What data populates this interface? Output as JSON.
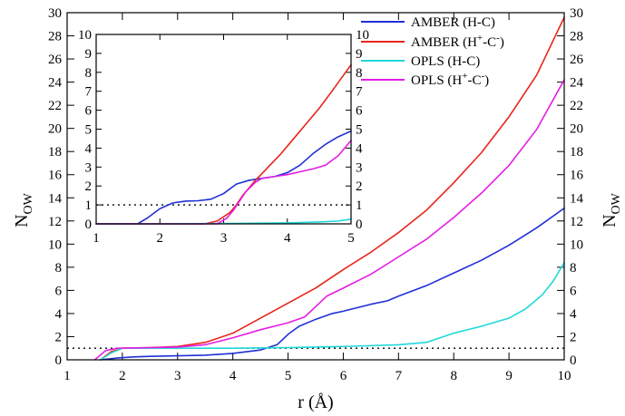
{
  "chart_data": [
    {
      "type": "line",
      "panel": "main",
      "xlabel": "r (Å)",
      "ylabel_main": "N",
      "ylabel_sub": "OW",
      "xlim": [
        1,
        10
      ],
      "ylim": [
        0,
        30
      ],
      "xticks": [
        1,
        2,
        3,
        4,
        5,
        6,
        7,
        8,
        9,
        10
      ],
      "yticks": [
        0,
        2,
        4,
        6,
        8,
        10,
        12,
        14,
        16,
        18,
        20,
        22,
        24,
        26,
        28,
        30
      ],
      "reference_line": {
        "y": 1,
        "style": "dotted"
      },
      "series": [
        {
          "name": "AMBER (H-C)",
          "color": "#1f2fd6",
          "x": [
            1.6,
            1.9,
            2.2,
            2.5,
            3.0,
            3.5,
            4.0,
            4.5,
            4.8,
            5.0,
            5.2,
            5.5,
            5.8,
            6.0,
            6.5,
            6.8,
            7.0,
            7.5,
            8.0,
            8.5,
            9.0,
            9.5,
            10.0
          ],
          "y": [
            0.0,
            0.15,
            0.25,
            0.3,
            0.35,
            0.4,
            0.55,
            0.85,
            1.3,
            2.2,
            2.9,
            3.5,
            4.0,
            4.2,
            4.8,
            5.1,
            5.5,
            6.4,
            7.5,
            8.6,
            9.9,
            11.4,
            13.1
          ]
        },
        {
          "name": "AMBER (H+-C-)",
          "label_main": "AMBER (H",
          "label_sup1": "+",
          "label_mid": "-C",
          "label_sup2": "-",
          "label_end": ")",
          "color": "#e8251b",
          "x": [
            1.6,
            1.8,
            2.0,
            2.5,
            3.0,
            3.5,
            4.0,
            4.5,
            5.0,
            5.5,
            6.0,
            6.5,
            7.0,
            7.5,
            8.0,
            8.5,
            9.0,
            9.5,
            10.0
          ],
          "y": [
            0.0,
            0.7,
            1.0,
            1.05,
            1.15,
            1.5,
            2.3,
            3.6,
            4.9,
            6.2,
            7.8,
            9.3,
            11.0,
            12.9,
            15.3,
            17.9,
            21.0,
            24.6,
            29.6
          ]
        },
        {
          "name": "OPLS (H-C)",
          "color": "#20d8d8",
          "x": [
            1.6,
            1.8,
            2.0,
            2.5,
            3.0,
            4.0,
            5.0,
            6.0,
            7.0,
            7.5,
            8.0,
            8.5,
            9.0,
            9.3,
            9.6,
            9.8,
            10.0
          ],
          "y": [
            0.0,
            0.6,
            1.0,
            1.0,
            1.0,
            1.0,
            1.05,
            1.15,
            1.3,
            1.5,
            2.3,
            2.9,
            3.6,
            4.4,
            5.6,
            6.8,
            8.4
          ]
        },
        {
          "name": "OPLS (H+-C-)",
          "label_main": "OPLS (H",
          "label_sup1": "+",
          "label_mid": "-C",
          "label_sup2": "-",
          "label_end": ")",
          "color": "#e41ee4",
          "x": [
            1.5,
            1.7,
            1.9,
            2.5,
            3.0,
            3.5,
            4.0,
            4.5,
            5.0,
            5.3,
            5.5,
            5.7,
            6.0,
            6.5,
            7.0,
            7.5,
            8.0,
            8.5,
            9.0,
            9.5,
            10.0
          ],
          "y": [
            0.0,
            0.8,
            1.0,
            1.05,
            1.1,
            1.3,
            1.9,
            2.6,
            3.2,
            3.7,
            4.6,
            5.5,
            6.2,
            7.4,
            8.9,
            10.4,
            12.3,
            14.4,
            16.8,
            19.9,
            24.2
          ]
        }
      ],
      "legend": {
        "placement": "top-right-inside"
      }
    },
    {
      "type": "line",
      "panel": "inset",
      "xlim": [
        1,
        5
      ],
      "ylim": [
        0,
        10
      ],
      "xticks": [
        1,
        2,
        3,
        4,
        5
      ],
      "yticks": [
        0,
        1,
        2,
        3,
        4,
        5,
        6,
        7,
        8,
        9,
        10
      ],
      "reference_line": {
        "y": 1,
        "style": "dotted"
      },
      "series": [
        {
          "name": "AMBER (H-C)",
          "color": "#1f2fd6",
          "x": [
            1.0,
            1.65,
            1.8,
            2.0,
            2.2,
            2.4,
            2.6,
            2.8,
            3.0,
            3.2,
            3.4,
            3.6,
            3.8,
            4.0,
            4.2,
            4.4,
            4.6,
            4.8,
            5.0
          ],
          "y": [
            0.0,
            0.0,
            0.3,
            0.8,
            1.1,
            1.2,
            1.22,
            1.3,
            1.6,
            2.1,
            2.3,
            2.4,
            2.5,
            2.7,
            3.1,
            3.7,
            4.2,
            4.6,
            4.9
          ]
        },
        {
          "name": "AMBER (H+-C-)",
          "color": "#e8251b",
          "x": [
            1.0,
            2.7,
            2.9,
            3.1,
            3.2,
            3.3,
            3.5,
            3.7,
            3.9,
            4.1,
            4.3,
            4.5,
            4.7,
            4.85,
            5.0
          ],
          "y": [
            0.0,
            0.0,
            0.15,
            0.6,
            1.0,
            1.5,
            2.3,
            3.0,
            3.7,
            4.5,
            5.3,
            6.1,
            7.0,
            7.7,
            8.4
          ]
        },
        {
          "name": "OPLS (H-C)",
          "color": "#20d8d8",
          "x": [
            1.0,
            2.0,
            3.0,
            4.0,
            4.5,
            4.8,
            5.0
          ],
          "y": [
            0.0,
            0.0,
            0.02,
            0.05,
            0.1,
            0.15,
            0.25
          ]
        },
        {
          "name": "OPLS (H+-C-)",
          "color": "#e41ee4",
          "x": [
            1.0,
            2.9,
            3.05,
            3.15,
            3.25,
            3.35,
            3.5,
            3.6,
            3.8,
            4.0,
            4.2,
            4.4,
            4.6,
            4.8,
            5.0
          ],
          "y": [
            0.0,
            0.0,
            0.3,
            0.7,
            1.2,
            1.7,
            2.2,
            2.4,
            2.5,
            2.6,
            2.75,
            2.9,
            3.1,
            3.6,
            4.4
          ]
        }
      ]
    }
  ]
}
